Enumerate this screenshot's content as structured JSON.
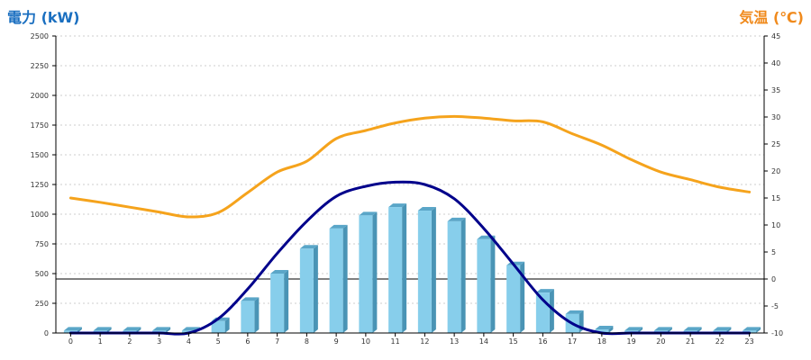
{
  "chart_data": {
    "type": "bar",
    "left_axis_title": "電力 (kW)",
    "right_axis_title": "気温 (℃)",
    "categories": [
      "0",
      "1",
      "2",
      "3",
      "4",
      "5",
      "6",
      "7",
      "8",
      "9",
      "10",
      "11",
      "12",
      "13",
      "14",
      "15",
      "16",
      "17",
      "18",
      "19",
      "20",
      "21",
      "22",
      "23"
    ],
    "y_left": {
      "min": 0,
      "max": 2500,
      "ticks": [
        "0",
        "250",
        "500",
        "750",
        "1000",
        "1250",
        "1500",
        "1750",
        "2000",
        "2250",
        "2500"
      ]
    },
    "y_right": {
      "min": -10,
      "max": 45,
      "ticks": [
        "-10",
        "-5",
        "0",
        "5",
        "10",
        "15",
        "20",
        "25",
        "30",
        "35",
        "40",
        "45"
      ]
    },
    "grid": true,
    "series": [
      {
        "type": "bar",
        "axis": "left",
        "color": "#87ceeb",
        "values": [
          20,
          20,
          20,
          20,
          20,
          100,
          270,
          500,
          710,
          880,
          990,
          1060,
          1030,
          940,
          790,
          570,
          340,
          160,
          30,
          20,
          20,
          20,
          20,
          20
        ]
      },
      {
        "type": "line",
        "axis": "left",
        "color": "#00008b",
        "values": [
          0,
          0,
          0,
          0,
          0,
          120,
          370,
          670,
          940,
          1150,
          1235,
          1270,
          1250,
          1130,
          880,
          580,
          280,
          80,
          0,
          0,
          0,
          0,
          0,
          0
        ]
      },
      {
        "type": "line",
        "axis": "right",
        "color": "#f5a31c",
        "values": [
          15,
          14.2,
          13.3,
          12.4,
          11.5,
          12.3,
          16,
          19.8,
          21.8,
          26,
          27.5,
          28.9,
          29.8,
          30.1,
          29.8,
          29.3,
          29.1,
          26.9,
          24.8,
          22.1,
          19.8,
          18.4,
          17,
          16.1
        ]
      }
    ]
  }
}
